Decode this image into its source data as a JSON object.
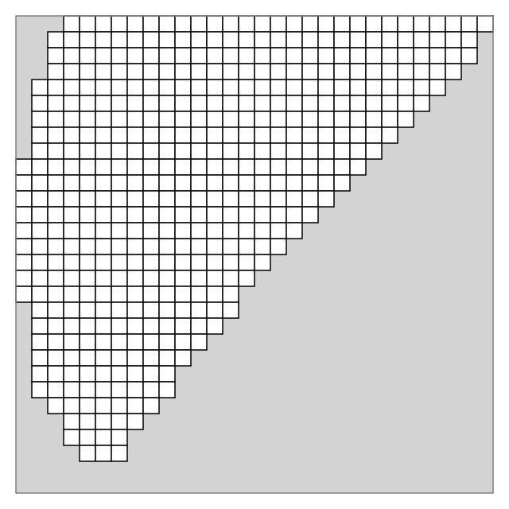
{
  "colors": {
    "background": "#d3d3d3",
    "border": "#808080",
    "cell_fill": "#ffffff",
    "cell_stroke": "#000000"
  },
  "grid": {
    "columns": 30,
    "rows": 30,
    "row_spans": [
      [
        3,
        29
      ],
      [
        2,
        28
      ],
      [
        2,
        28
      ],
      [
        2,
        27
      ],
      [
        1,
        26
      ],
      [
        1,
        25
      ],
      [
        1,
        24
      ],
      [
        1,
        23
      ],
      [
        1,
        22
      ],
      [
        0,
        21
      ],
      [
        0,
        20
      ],
      [
        0,
        19
      ],
      [
        0,
        18
      ],
      [
        0,
        17
      ],
      [
        0,
        16
      ],
      [
        0,
        15
      ],
      [
        0,
        14
      ],
      [
        0,
        13
      ],
      [
        1,
        13
      ],
      [
        1,
        12
      ],
      [
        1,
        11
      ],
      [
        1,
        10
      ],
      [
        1,
        9
      ],
      [
        1,
        9
      ],
      [
        2,
        8
      ],
      [
        3,
        7
      ],
      [
        3,
        6
      ],
      [
        4,
        6
      ]
    ]
  }
}
